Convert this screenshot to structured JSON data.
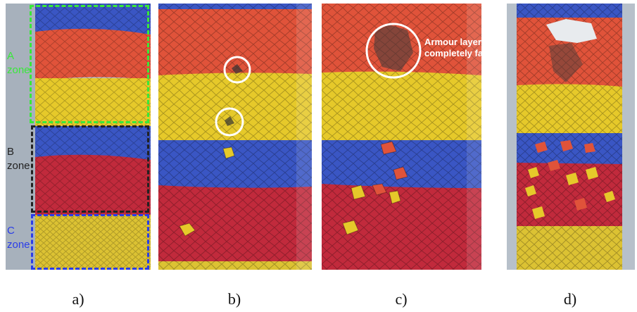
{
  "panels": [
    {
      "caption": "a)"
    },
    {
      "caption": "b)"
    },
    {
      "caption": "c)"
    },
    {
      "caption": "d)"
    }
  ],
  "zones": {
    "a": {
      "letter": "A",
      "word": "zone",
      "color": "#39e83a"
    },
    "b": {
      "letter": "B",
      "word": "zone",
      "color": "#222222"
    },
    "c": {
      "letter": "C",
      "word": "zone",
      "color": "#2a3de8"
    }
  },
  "annotation": {
    "text": "Armour layer completely failed"
  },
  "colors": {
    "blue": "#3a56c4",
    "red_orange": "#e0533a",
    "yellow": "#e6c92a",
    "crimson": "#c12a3c",
    "frame": "#9aa3ad"
  }
}
